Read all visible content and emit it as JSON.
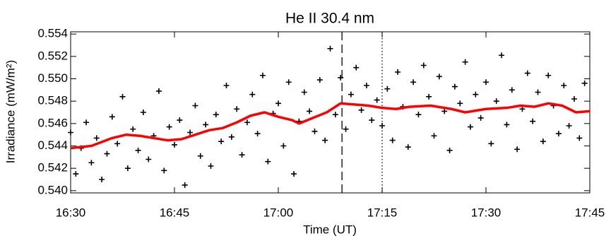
{
  "chart_data": {
    "type": "scatter",
    "title": "He II 30.4 nm",
    "x_label": "Time (UT)",
    "y_label": "Irradiance (mW/m²)",
    "xlim": [
      990,
      1065
    ],
    "xticks": [
      {
        "value": 990,
        "label": "16:30"
      },
      {
        "value": 1005,
        "label": "16:45"
      },
      {
        "value": 1020,
        "label": "17:00"
      },
      {
        "value": 1035,
        "label": "17:15"
      },
      {
        "value": 1050,
        "label": "17:30"
      },
      {
        "value": 1065,
        "label": "17:45"
      }
    ],
    "ylim": [
      0.5398,
      0.5542
    ],
    "yticks": [
      {
        "value": 0.54,
        "label": "0.540"
      },
      0.542,
      0.544,
      0.546,
      0.548,
      {
        "value": 0.55,
        "label": "0.550"
      },
      0.552,
      0.554
    ],
    "vlines": [
      {
        "x": 1029.2,
        "style": "dashed"
      },
      {
        "x": 1035,
        "style": "dotted"
      }
    ],
    "series": [
      {
        "type": "scatter",
        "color": "#000000",
        "x": [
          990,
          990.75,
          991.5,
          992.25,
          993,
          993.75,
          994.5,
          995.25,
          996,
          996.75,
          997.5,
          998.25,
          999,
          999.75,
          1000.5,
          1001.25,
          1002,
          1002.75,
          1003.5,
          1004.25,
          1005,
          1005.75,
          1006.5,
          1007.25,
          1008,
          1008.75,
          1009.5,
          1010.25,
          1011,
          1011.75,
          1012.5,
          1013.25,
          1014,
          1014.75,
          1015.5,
          1016.25,
          1017,
          1017.75,
          1018.5,
          1019.25,
          1020,
          1020.75,
          1021.5,
          1022.25,
          1023,
          1023.75,
          1024.5,
          1025.25,
          1026,
          1026.75,
          1027.5,
          1028.25,
          1029,
          1029.75,
          1030.5,
          1031.25,
          1032,
          1032.75,
          1033.5,
          1034.25,
          1035,
          1035.75,
          1036.5,
          1037.25,
          1038,
          1038.75,
          1039.5,
          1040.25,
          1041,
          1041.75,
          1042.5,
          1043.25,
          1044,
          1044.75,
          1045.5,
          1046.25,
          1047,
          1047.75,
          1048.5,
          1049.25,
          1050,
          1050.75,
          1051.5,
          1052.25,
          1053,
          1053.75,
          1054.5,
          1055.25,
          1056,
          1056.75,
          1057.5,
          1058.25,
          1059,
          1059.75,
          1060.5,
          1061.25,
          1062,
          1062.75,
          1063.5,
          1064.25
        ],
        "values": [
          0.5452,
          0.5415,
          0.5438,
          0.5461,
          0.5425,
          0.5447,
          0.541,
          0.5433,
          0.5466,
          0.5442,
          0.5484,
          0.542,
          0.5455,
          0.5436,
          0.547,
          0.5428,
          0.5449,
          0.5489,
          0.5418,
          0.5457,
          0.5441,
          0.5463,
          0.5405,
          0.5452,
          0.5476,
          0.5431,
          0.5459,
          0.5422,
          0.5468,
          0.5444,
          0.5494,
          0.5448,
          0.5473,
          0.5432,
          0.5461,
          0.5486,
          0.5451,
          0.5503,
          0.5426,
          0.5469,
          0.5478,
          0.544,
          0.5497,
          0.5415,
          0.5462,
          0.5488,
          0.5471,
          0.5453,
          0.5499,
          0.5445,
          0.5527,
          0.5468,
          0.5501,
          0.5455,
          0.5486,
          0.551,
          0.5472,
          0.5494,
          0.5463,
          0.5481,
          0.5458,
          0.5491,
          0.5445,
          0.5506,
          0.5475,
          0.5439,
          0.5497,
          0.5468,
          0.5512,
          0.5484,
          0.5449,
          0.5502,
          0.5471,
          0.5436,
          0.5493,
          0.5478,
          0.5515,
          0.5457,
          0.5486,
          0.5465,
          0.5497,
          0.5442,
          0.548,
          0.5521,
          0.5459,
          0.549,
          0.5437,
          0.5473,
          0.5505,
          0.5462,
          0.5488,
          0.5444,
          0.5503,
          0.5476,
          0.5451,
          0.5494,
          0.5458,
          0.5482,
          0.5447,
          0.5496
        ]
      },
      {
        "type": "line",
        "color": "#ff0000",
        "x": [
          990,
          993,
          996,
          998,
          1000,
          1002,
          1004,
          1006,
          1008,
          1010,
          1012,
          1014,
          1016,
          1018,
          1020,
          1022,
          1023,
          1025,
          1027,
          1029,
          1031,
          1033,
          1035,
          1037,
          1039,
          1042,
          1045,
          1047,
          1050,
          1053,
          1055,
          1057,
          1059,
          1061,
          1063,
          1065
        ],
        "values": [
          0.5438,
          0.544,
          0.5447,
          0.545,
          0.5449,
          0.5447,
          0.5445,
          0.5446,
          0.545,
          0.5454,
          0.5456,
          0.5461,
          0.5467,
          0.547,
          0.5466,
          0.5463,
          0.546,
          0.5465,
          0.547,
          0.5478,
          0.5477,
          0.5476,
          0.5474,
          0.5473,
          0.5475,
          0.5476,
          0.5473,
          0.547,
          0.5473,
          0.5474,
          0.5476,
          0.5475,
          0.5478,
          0.5476,
          0.547,
          0.5471
        ]
      }
    ]
  }
}
